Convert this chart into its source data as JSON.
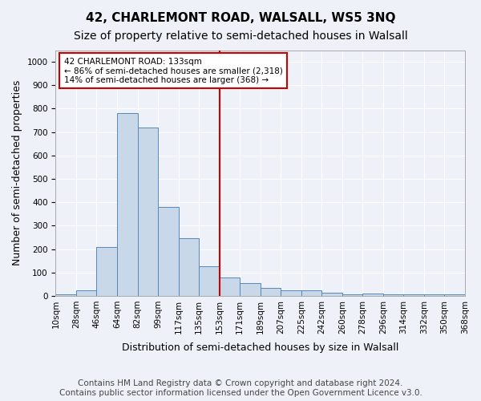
{
  "title1": "42, CHARLEMONT ROAD, WALSALL, WS5 3NQ",
  "title2": "Size of property relative to semi-detached houses in Walsall",
  "xlabel": "Distribution of semi-detached houses by size in Walsall",
  "ylabel": "Number of semi-detached properties",
  "bin_labels": [
    "10sqm",
    "28sqm",
    "46sqm",
    "64sqm",
    "82sqm",
    "99sqm",
    "117sqm",
    "135sqm",
    "153sqm",
    "171sqm",
    "189sqm",
    "207sqm",
    "225sqm",
    "242sqm",
    "260sqm",
    "278sqm",
    "296sqm",
    "314sqm",
    "332sqm",
    "350sqm",
    "368sqm"
  ],
  "bar_values": [
    8,
    22,
    210,
    780,
    720,
    380,
    248,
    128,
    78,
    55,
    35,
    25,
    22,
    13,
    8,
    10,
    8,
    5,
    8,
    5
  ],
  "bar_color": "#c8d8e8",
  "bar_edge_color": "#5588bb",
  "ylim": [
    0,
    1050
  ],
  "yticks": [
    0,
    100,
    200,
    300,
    400,
    500,
    600,
    700,
    800,
    900,
    1000
  ],
  "property_bin_index": 7,
  "annotation_title": "42 CHARLEMONT ROAD: 133sqm",
  "annotation_line1": "← 86% of semi-detached houses are smaller (2,318)",
  "annotation_line2": "14% of semi-detached houses are larger (368) →",
  "annotation_box_color": "#ffffff",
  "annotation_box_edge_color": "#cc0000",
  "vline_color": "#cc0000",
  "footer1": "Contains HM Land Registry data © Crown copyright and database right 2024.",
  "footer2": "Contains public sector information licensed under the Open Government Licence v3.0.",
  "bg_color": "#eef2f8",
  "plot_bg_color": "#eef2f8",
  "grid_color": "#ffffff",
  "title1_fontsize": 11,
  "title2_fontsize": 10,
  "xlabel_fontsize": 9,
  "ylabel_fontsize": 9,
  "tick_fontsize": 7.5,
  "footer_fontsize": 7.5
}
